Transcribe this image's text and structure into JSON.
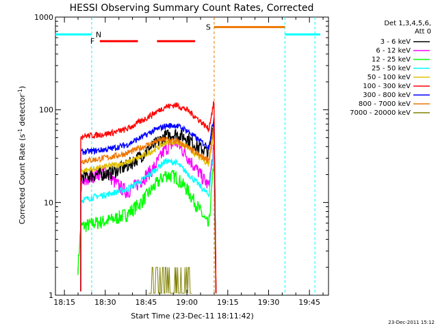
{
  "chart_data": {
    "type": "line",
    "title": "HESSI Observing Summary Count Rates, Corrected",
    "xlabel": "Start Time (23-Dec-11 18:11:42)",
    "ylabel_main": "Corrected Count Rate (s",
    "ylabel_sup1": "-1",
    "ylabel_mid": " detector",
    "ylabel_sup2": "-1",
    "ylabel_end": ")",
    "yscale": "log",
    "ylim": [
      1,
      1000
    ],
    "xlim": [
      "18:11:42",
      "19:52:00"
    ],
    "x_ticks": [
      "18:15",
      "18:30",
      "18:45",
      "19:00",
      "19:15",
      "19:30",
      "19:45"
    ],
    "y_ticks": [
      "1",
      "10",
      "100",
      "1000"
    ],
    "legend_title": [
      "Det 1,3,4,5,6,",
      "Att 0"
    ],
    "legend_position": "right",
    "timestamp": "23-Dec-2011 15:12",
    "series": [
      {
        "name": "3 - 6 keV",
        "color": "#000000",
        "x": [
          "18:21",
          "18:26",
          "18:32",
          "18:38",
          "18:43",
          "18:48",
          "18:52",
          "18:56",
          "19:00",
          "19:04",
          "19:08",
          "19:10"
        ],
        "values": [
          19,
          20,
          21,
          25,
          32,
          42,
          52,
          55,
          50,
          40,
          35,
          80
        ]
      },
      {
        "name": "6 - 12 keV",
        "color": "#ff00ff",
        "x": [
          "18:21",
          "18:26",
          "18:30",
          "18:34",
          "18:38",
          "18:43",
          "18:48",
          "18:52",
          "18:56",
          "19:00",
          "19:04",
          "19:08",
          "19:10"
        ],
        "values": [
          15,
          20,
          22,
          16,
          13,
          17,
          24,
          38,
          45,
          32,
          22,
          15,
          40
        ]
      },
      {
        "name": "12 - 25 keV",
        "color": "#00ff00",
        "x": [
          "18:20",
          "18:21",
          "18:26",
          "18:32",
          "18:38",
          "18:43",
          "18:48",
          "18:52",
          "18:56",
          "19:00",
          "19:04",
          "19:08",
          "19:10"
        ],
        "values": [
          2,
          5.5,
          6,
          6.5,
          7.5,
          10,
          15,
          20,
          19,
          14,
          9,
          5.5,
          30
        ]
      },
      {
        "name": "25 - 50 keV",
        "color": "#00ffff",
        "x": [
          "18:21",
          "18:26",
          "18:32",
          "18:38",
          "18:43",
          "18:48",
          "18:52",
          "18:56",
          "19:00",
          "19:04",
          "19:08",
          "19:10"
        ],
        "values": [
          10.5,
          11.5,
          12.5,
          14,
          17,
          22,
          28,
          27,
          21,
          16,
          12,
          40
        ]
      },
      {
        "name": "50 - 100 keV",
        "color": "#e0c000",
        "x": [
          "18:21",
          "18:26",
          "18:32",
          "18:38",
          "18:43",
          "18:48",
          "18:52",
          "18:56",
          "19:00",
          "19:04",
          "19:08",
          "19:10"
        ],
        "values": [
          22,
          23,
          25,
          27,
          31,
          37,
          44,
          45,
          40,
          32,
          26,
          60
        ]
      },
      {
        "name": "100 - 300 keV",
        "color": "#ff0000",
        "x": [
          "18:21",
          "18:26",
          "18:32",
          "18:38",
          "18:43",
          "18:48",
          "18:52",
          "18:56",
          "19:00",
          "19:04",
          "19:08",
          "19:10"
        ],
        "values": [
          52,
          53,
          56,
          62,
          75,
          92,
          108,
          113,
          100,
          80,
          62,
          125
        ]
      },
      {
        "name": "300 - 800 keV",
        "color": "#0000ff",
        "x": [
          "18:21",
          "18:26",
          "18:32",
          "18:38",
          "18:43",
          "18:48",
          "18:52",
          "18:56",
          "19:00",
          "19:04",
          "19:08",
          "19:10"
        ],
        "values": [
          35,
          36,
          38,
          42,
          50,
          60,
          67,
          68,
          60,
          48,
          40,
          85
        ]
      },
      {
        "name": "800 - 7000 keV",
        "color": "#ee7600",
        "x": [
          "18:21",
          "18:26",
          "18:32",
          "18:38",
          "18:43",
          "18:48",
          "18:52",
          "18:56",
          "19:00",
          "19:04",
          "19:08",
          "19:10"
        ],
        "values": [
          28,
          29,
          31,
          34,
          39,
          45,
          48,
          46,
          40,
          33,
          29,
          70
        ]
      },
      {
        "name": "7000 - 20000 keV",
        "color": "#808000",
        "x": [
          "18:46",
          "18:48",
          "18:52",
          "18:56",
          "19:00",
          "19:02"
        ],
        "values": [
          1.9,
          2,
          2,
          2,
          2,
          1.8
        ]
      }
    ],
    "flags": [
      {
        "label": "F",
        "color": "#ff0000",
        "level": 550,
        "intervals": [
          [
            "18:28",
            "18:42"
          ],
          [
            "18:49",
            "19:03"
          ]
        ]
      },
      {
        "label": "N",
        "color": "#00ffff",
        "level": 650,
        "intervals": [
          [
            "18:11:42",
            "18:25"
          ],
          [
            "19:36",
            "19:49"
          ]
        ]
      },
      {
        "label": "S",
        "color": "#ee7600",
        "level": 780,
        "intervals": [
          [
            "19:10",
            "19:36"
          ]
        ]
      }
    ],
    "vlines": [
      {
        "color": "#00ffff",
        "times": [
          "18:25",
          "19:36",
          "19:47"
        ]
      },
      {
        "color": "#ee7600",
        "times": [
          "19:10"
        ]
      }
    ]
  }
}
